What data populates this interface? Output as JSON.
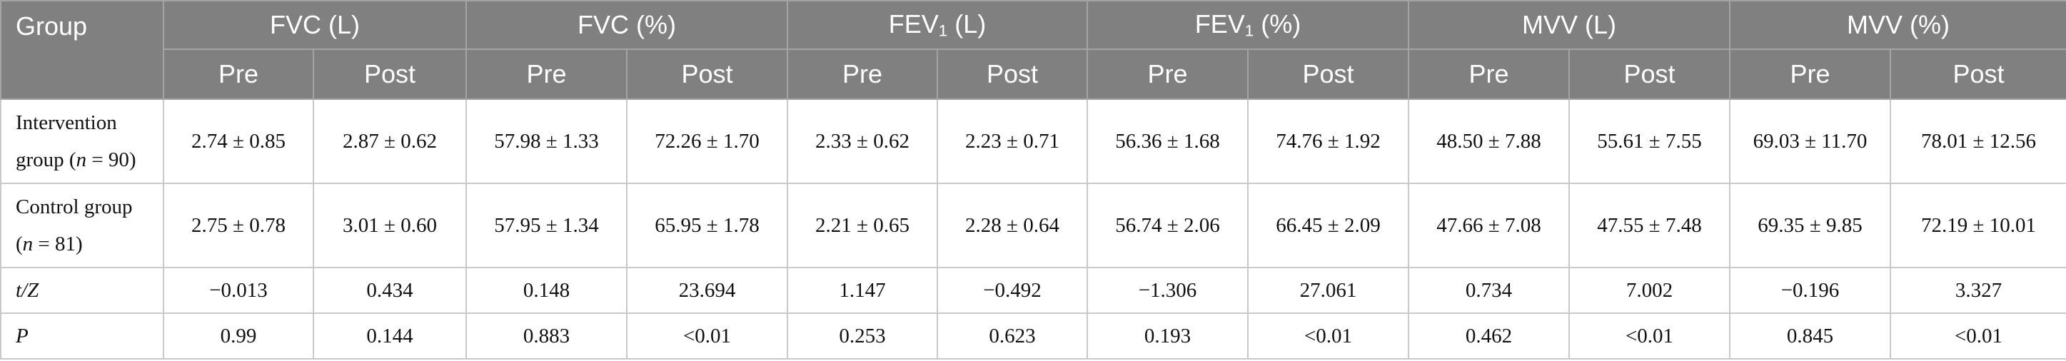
{
  "header": {
    "group_label": "Group",
    "measures": [
      {
        "name": "FVC (L)",
        "sub": ""
      },
      {
        "name": "FVC (%)",
        "sub": ""
      },
      {
        "name_pre": "FEV",
        "sub": "1",
        "name_post": " (L)"
      },
      {
        "name_pre": "FEV",
        "sub": "1",
        "name_post": " (%)"
      },
      {
        "name": "MVV (L)",
        "sub": ""
      },
      {
        "name": "MVV (%)",
        "sub": ""
      }
    ],
    "pre_label": "Pre",
    "post_label": "Post"
  },
  "rows": [
    {
      "label_line1": "Intervention",
      "label_line2_pre": "group (",
      "label_n": "n",
      "label_line2_post": " = 90)",
      "cells": [
        "2.74 ± 0.85",
        "2.87 ± 0.62",
        "57.98 ± 1.33",
        "72.26 ± 1.70",
        "2.33 ± 0.62",
        "2.23 ± 0.71",
        "56.36 ± 1.68",
        "74.76 ± 1.92",
        "48.50 ± 7.88",
        "55.61 ± 7.55",
        "69.03 ± 11.70",
        "78.01 ± 12.56"
      ]
    },
    {
      "label_line1": "Control group",
      "label_line2_pre": "(",
      "label_n": "n",
      "label_line2_post": " = 81)",
      "cells": [
        "2.75 ± 0.78",
        "3.01 ± 0.60",
        "57.95 ± 1.34",
        "65.95 ± 1.78",
        "2.21 ± 0.65",
        "2.28 ± 0.64",
        "56.74 ± 2.06",
        "66.45 ± 2.09",
        "47.66 ± 7.08",
        "47.55 ± 7.48",
        "69.35 ± 9.85",
        "72.19 ± 10.01"
      ]
    },
    {
      "label": "t/Z",
      "cells": [
        "−0.013",
        "0.434",
        "0.148",
        "23.694",
        "1.147",
        "−0.492",
        "−1.306",
        "27.061",
        "0.734",
        "7.002",
        "−0.196",
        "3.327"
      ]
    },
    {
      "label": "P",
      "cells": [
        "0.99",
        "0.144",
        "0.883",
        "<0.01",
        "0.253",
        "0.623",
        "0.193",
        "<0.01",
        "0.462",
        "<0.01",
        "0.845",
        "<0.01"
      ]
    }
  ]
}
